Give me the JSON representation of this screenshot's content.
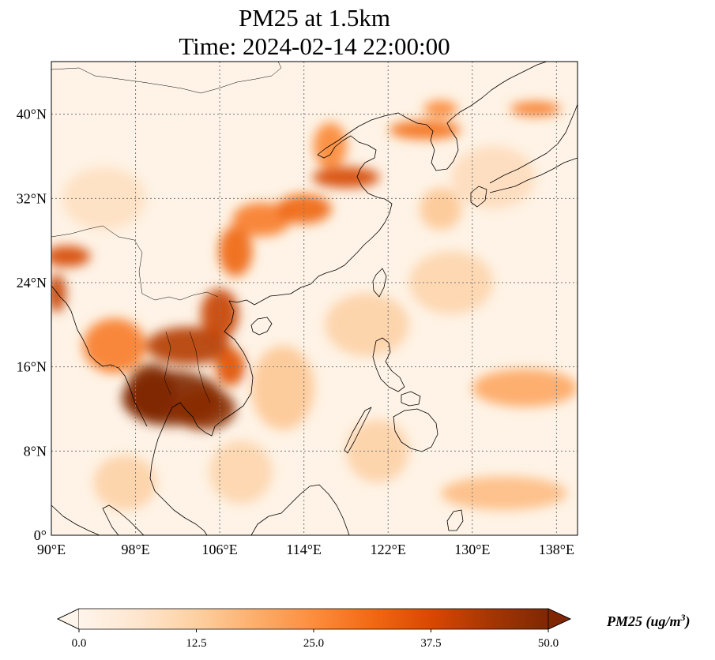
{
  "title": {
    "line1": "PM25 at 1.5km",
    "line2": "Time: 2024-02-14 22:00:00"
  },
  "map": {
    "extent": {
      "lon_min": 90,
      "lon_max": 140,
      "lat_min": 0,
      "lat_max": 45
    },
    "gridlines": true,
    "lon_ticks": [
      {
        "value": 90,
        "label": "90°E"
      },
      {
        "value": 98,
        "label": "98°E"
      },
      {
        "value": 106,
        "label": "106°E"
      },
      {
        "value": 114,
        "label": "114°E"
      },
      {
        "value": 122,
        "label": "122°E"
      },
      {
        "value": 130,
        "label": "130°E"
      },
      {
        "value": 138,
        "label": "138°E"
      }
    ],
    "lat_ticks": [
      {
        "value": 0,
        "label": "0°"
      },
      {
        "value": 8,
        "label": "8°N"
      },
      {
        "value": 16,
        "label": "16°N"
      },
      {
        "value": 24,
        "label": "24°N"
      },
      {
        "value": 32,
        "label": "32°N"
      },
      {
        "value": 40,
        "label": "40°N"
      }
    ],
    "pollution_plumes": [
      {
        "lon": 101.5,
        "lat": 13.0,
        "value": 50,
        "rx": 4.8,
        "ry": 2.6
      },
      {
        "lon": 99.5,
        "lat": 13.5,
        "value": 50,
        "rx": 2.4,
        "ry": 2.8
      },
      {
        "lon": 104.5,
        "lat": 12.0,
        "value": 48,
        "rx": 3.0,
        "ry": 2.0
      },
      {
        "lon": 103.0,
        "lat": 18.0,
        "value": 42,
        "rx": 4.0,
        "ry": 1.8
      },
      {
        "lon": 106.0,
        "lat": 21.0,
        "value": 40,
        "rx": 1.8,
        "ry": 2.4
      },
      {
        "lon": 107.0,
        "lat": 16.0,
        "value": 36,
        "rx": 1.4,
        "ry": 1.8
      },
      {
        "lon": 91.5,
        "lat": 26.5,
        "value": 38,
        "rx": 2.2,
        "ry": 1.0
      },
      {
        "lon": 90.5,
        "lat": 23.0,
        "value": 40,
        "rx": 0.9,
        "ry": 1.8
      },
      {
        "lon": 96.0,
        "lat": 18.0,
        "value": 28,
        "rx": 3.0,
        "ry": 2.6
      },
      {
        "lon": 107.5,
        "lat": 27.0,
        "value": 32,
        "rx": 1.6,
        "ry": 2.4
      },
      {
        "lon": 110.0,
        "lat": 30.0,
        "value": 28,
        "rx": 2.8,
        "ry": 1.6
      },
      {
        "lon": 118.0,
        "lat": 34.0,
        "value": 38,
        "rx": 3.2,
        "ry": 1.0
      },
      {
        "lon": 114.0,
        "lat": 31.0,
        "value": 32,
        "rx": 2.6,
        "ry": 1.4
      },
      {
        "lon": 116.5,
        "lat": 37.0,
        "value": 26,
        "rx": 1.6,
        "ry": 2.2
      },
      {
        "lon": 125.5,
        "lat": 38.5,
        "value": 30,
        "rx": 3.4,
        "ry": 0.9
      },
      {
        "lon": 127.0,
        "lat": 40.5,
        "value": 26,
        "rx": 1.6,
        "ry": 0.8
      },
      {
        "lon": 136.0,
        "lat": 40.5,
        "value": 28,
        "rx": 2.4,
        "ry": 0.7
      },
      {
        "lon": 135.0,
        "lat": 14.0,
        "value": 20,
        "rx": 5.0,
        "ry": 1.8
      },
      {
        "lon": 133.0,
        "lat": 4.0,
        "value": 16,
        "rx": 6.0,
        "ry": 1.6
      },
      {
        "lon": 112.0,
        "lat": 14.0,
        "value": 14,
        "rx": 3.0,
        "ry": 4.0
      },
      {
        "lon": 120.0,
        "lat": 20.0,
        "value": 12,
        "rx": 4.0,
        "ry": 3.0
      },
      {
        "lon": 128.0,
        "lat": 24.0,
        "value": 11,
        "rx": 4.0,
        "ry": 3.0
      },
      {
        "lon": 121.0,
        "lat": 8.0,
        "value": 12,
        "rx": 3.0,
        "ry": 3.0
      },
      {
        "lon": 108.0,
        "lat": 6.0,
        "value": 11,
        "rx": 3.0,
        "ry": 3.0
      },
      {
        "lon": 97.0,
        "lat": 5.0,
        "value": 12,
        "rx": 3.0,
        "ry": 2.6
      },
      {
        "lon": 95.0,
        "lat": 32.0,
        "value": 8,
        "rx": 4.0,
        "ry": 3.0
      },
      {
        "lon": 132.0,
        "lat": 34.0,
        "value": 9,
        "rx": 4.0,
        "ry": 3.0
      },
      {
        "lon": 127.0,
        "lat": 31.0,
        "value": 14,
        "rx": 2.0,
        "ry": 2.0
      }
    ]
  },
  "colorbar": {
    "min": 0,
    "max": 50,
    "colors": [
      "#fff5eb",
      "#fee6ce",
      "#fdd0a2",
      "#fdae6b",
      "#fd8d3c",
      "#f16913",
      "#d94801",
      "#a63603",
      "#7f2704"
    ],
    "ticks": [
      {
        "value": 0,
        "label": "0.0"
      },
      {
        "value": 12.5,
        "label": "12.5"
      },
      {
        "value": 25,
        "label": "25.0"
      },
      {
        "value": 37.5,
        "label": "37.5"
      },
      {
        "value": 50,
        "label": "50.0"
      }
    ],
    "label_main": "PM25 (ug/m",
    "label_sup": "3",
    "label_end": ")"
  },
  "styles": {
    "water": "#fef3e6",
    "coast": "#000000",
    "grid": "#777777"
  }
}
